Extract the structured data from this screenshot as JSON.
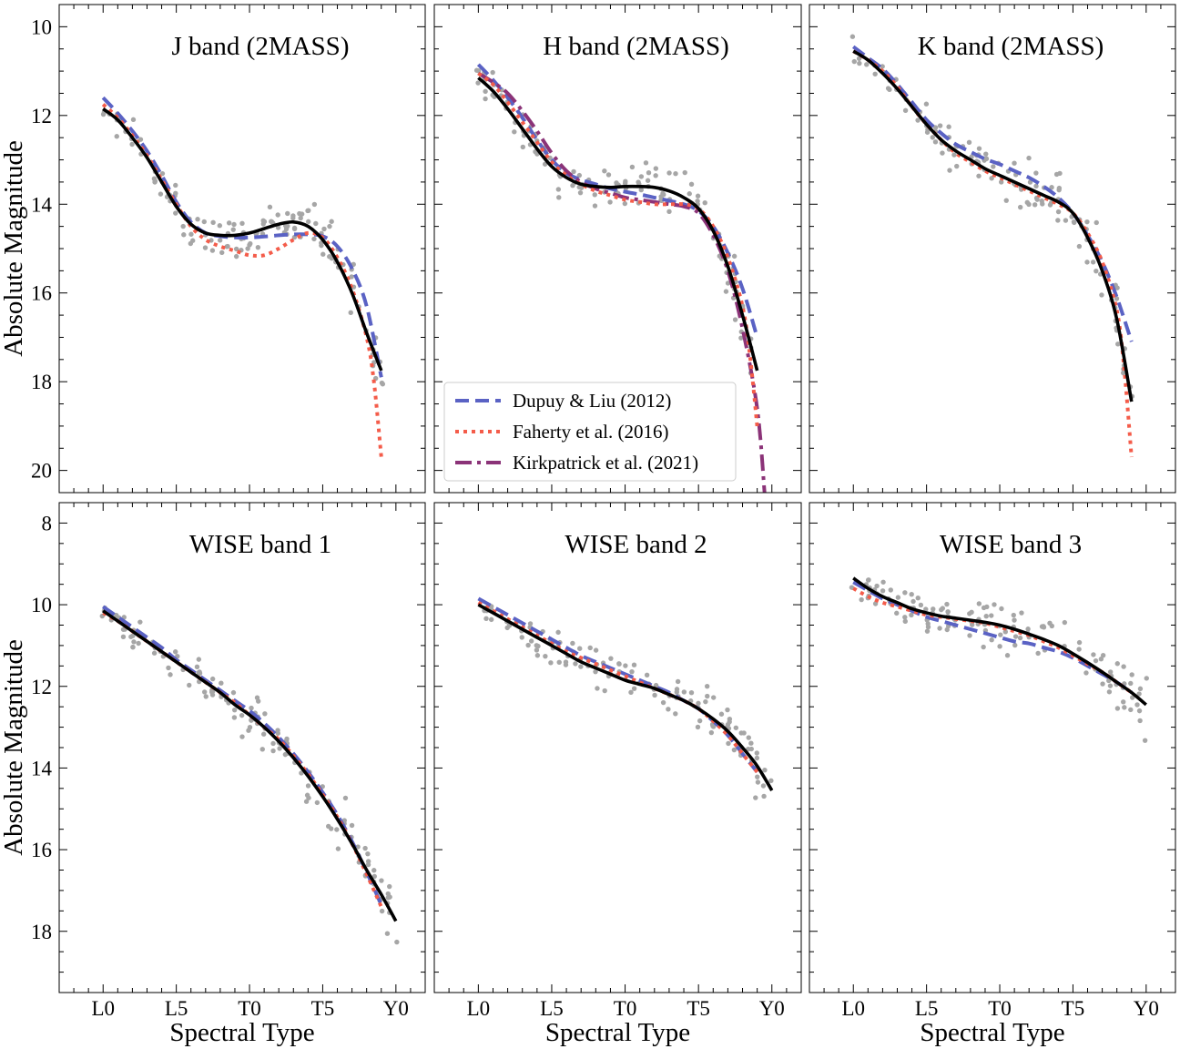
{
  "figure": {
    "ylabel": "Absolute Magnitude",
    "xlabel": "Spectral Type",
    "xticks": [
      {
        "v": 0,
        "label": "L0"
      },
      {
        "v": 5,
        "label": "L5"
      },
      {
        "v": 10,
        "label": "T0"
      },
      {
        "v": 15,
        "label": "T5"
      },
      {
        "v": 20,
        "label": "Y0"
      }
    ],
    "legend": {
      "entries": [
        {
          "key": "dupuy",
          "label": "Dupuy & Liu (2012)"
        },
        {
          "key": "faherty",
          "label": "Faherty et al. (2016)"
        },
        {
          "key": "kirk",
          "label": "Kirkpatrick et al. (2021)"
        }
      ]
    },
    "styles": {
      "dupuy": {
        "color": "#5a62c4",
        "dash": "15,7"
      },
      "faherty": {
        "color": "#f45c4a",
        "dash": "4,5"
      },
      "kirk": {
        "color": "#8b3378",
        "dash": "18,6,4,6"
      },
      "fit": {
        "color": "#000000",
        "dash": ""
      },
      "points": {
        "color": "#a6a6a6"
      }
    }
  },
  "chart_data": [
    {
      "type": "line",
      "title": "J band (2MASS)",
      "xlim": [
        -3,
        22
      ],
      "ylim": [
        20.5,
        9.5
      ],
      "y_inverted": true,
      "yticks": [
        10,
        12,
        14,
        16,
        18,
        20
      ],
      "xlabel": "",
      "ylabel": "Absolute Magnitude",
      "series": [
        {
          "key": "dupuy",
          "x": [
            0,
            1,
            2,
            3,
            4,
            5,
            6,
            7,
            8,
            9,
            10,
            11,
            12,
            13,
            14,
            15,
            16,
            17,
            18,
            19
          ],
          "y": [
            11.6,
            11.95,
            12.35,
            12.8,
            13.35,
            13.95,
            14.4,
            14.65,
            14.72,
            14.75,
            14.75,
            14.73,
            14.7,
            14.68,
            14.68,
            14.72,
            14.95,
            15.45,
            16.3,
            17.9
          ]
        },
        {
          "key": "faherty",
          "x": [
            0,
            1,
            2,
            3,
            4,
            5,
            6,
            7,
            8,
            9,
            10,
            11,
            12,
            13,
            14,
            15,
            16,
            17,
            18,
            18.5,
            19
          ],
          "y": [
            11.75,
            12.05,
            12.45,
            12.9,
            13.45,
            14.0,
            14.5,
            14.8,
            14.95,
            15.05,
            15.15,
            15.15,
            15.0,
            14.8,
            14.65,
            14.75,
            15.2,
            15.9,
            17.0,
            18.0,
            19.7
          ]
        },
        {
          "key": "fit",
          "x": [
            0,
            1,
            2,
            3,
            4,
            5,
            6,
            7,
            8,
            9,
            10,
            11,
            12,
            13,
            14,
            15,
            16,
            17,
            18,
            19
          ],
          "y": [
            11.85,
            12.1,
            12.5,
            12.95,
            13.5,
            14.05,
            14.45,
            14.65,
            14.7,
            14.7,
            14.65,
            14.55,
            14.45,
            14.4,
            14.5,
            14.8,
            15.3,
            16.0,
            16.9,
            17.75
          ]
        }
      ]
    },
    {
      "type": "line",
      "title": "H band (2MASS)",
      "xlim": [
        -3,
        22
      ],
      "ylim": [
        20.5,
        9.5
      ],
      "y_inverted": true,
      "yticks": [
        10,
        12,
        14,
        16,
        18,
        20
      ],
      "xlabel": "",
      "ylabel": "",
      "series": [
        {
          "key": "dupuy",
          "x": [
            0,
            1,
            2,
            3,
            4,
            5,
            6,
            7,
            8,
            9,
            10,
            11,
            12,
            13,
            14,
            15,
            16,
            17,
            18,
            19
          ],
          "y": [
            10.85,
            11.2,
            11.6,
            12.05,
            12.55,
            13.0,
            13.3,
            13.45,
            13.55,
            13.65,
            13.72,
            13.78,
            13.85,
            13.92,
            14.0,
            14.15,
            14.5,
            15.1,
            15.9,
            17.0
          ]
        },
        {
          "key": "faherty",
          "x": [
            0,
            1,
            2,
            3,
            4,
            5,
            6,
            7,
            8,
            9,
            10,
            11,
            12,
            13,
            14,
            15,
            16,
            17,
            18,
            18.5,
            19
          ],
          "y": [
            11.05,
            11.3,
            11.7,
            12.15,
            12.6,
            13.05,
            13.35,
            13.55,
            13.7,
            13.8,
            13.9,
            13.95,
            14.0,
            14.0,
            14.0,
            14.1,
            14.5,
            15.2,
            16.3,
            17.4,
            19.0
          ]
        },
        {
          "key": "kirk",
          "x": [
            0,
            1,
            2,
            3,
            4,
            5,
            6,
            7,
            8,
            9,
            10,
            11,
            12,
            13,
            14,
            15,
            16,
            17,
            18,
            19,
            19.5
          ],
          "y": [
            11.05,
            11.25,
            11.5,
            11.9,
            12.35,
            12.85,
            13.25,
            13.5,
            13.65,
            13.75,
            13.85,
            13.9,
            13.95,
            14.0,
            14.05,
            14.2,
            14.7,
            15.5,
            16.8,
            18.6,
            20.5
          ]
        },
        {
          "key": "fit",
          "x": [
            0,
            1,
            2,
            3,
            4,
            5,
            6,
            7,
            8,
            9,
            10,
            11,
            12,
            13,
            14,
            15,
            16,
            17,
            18,
            19
          ],
          "y": [
            11.15,
            11.45,
            11.85,
            12.3,
            12.75,
            13.15,
            13.4,
            13.55,
            13.6,
            13.62,
            13.6,
            13.6,
            13.62,
            13.7,
            13.85,
            14.1,
            14.6,
            15.4,
            16.5,
            17.75
          ]
        }
      ]
    },
    {
      "type": "line",
      "title": "K band (2MASS)",
      "xlim": [
        -3,
        22
      ],
      "ylim": [
        20.5,
        9.5
      ],
      "y_inverted": true,
      "yticks": [
        10,
        12,
        14,
        16,
        18,
        20
      ],
      "xlabel": "",
      "ylabel": "",
      "series": [
        {
          "key": "dupuy",
          "x": [
            0,
            1,
            2,
            3,
            4,
            5,
            6,
            7,
            8,
            9,
            10,
            11,
            12,
            13,
            14,
            15,
            16,
            17,
            18,
            19
          ],
          "y": [
            10.45,
            10.7,
            10.95,
            11.3,
            11.7,
            12.1,
            12.4,
            12.65,
            12.82,
            12.98,
            13.1,
            13.25,
            13.4,
            13.6,
            13.85,
            14.2,
            14.7,
            15.3,
            16.1,
            17.1
          ]
        },
        {
          "key": "faherty",
          "x": [
            0,
            1,
            2,
            3,
            4,
            5,
            6,
            7,
            8,
            9,
            10,
            11,
            12,
            13,
            14,
            15,
            16,
            17,
            18,
            18.5,
            19
          ],
          "y": [
            10.55,
            10.75,
            11.0,
            11.35,
            11.8,
            12.2,
            12.55,
            12.85,
            13.05,
            13.25,
            13.4,
            13.55,
            13.7,
            13.85,
            14.0,
            14.2,
            14.65,
            15.3,
            16.4,
            17.7,
            19.7
          ]
        },
        {
          "key": "fit",
          "x": [
            0,
            1,
            2,
            3,
            4,
            5,
            6,
            7,
            8,
            9,
            10,
            11,
            12,
            13,
            14,
            15,
            16,
            17,
            18,
            19
          ],
          "y": [
            10.55,
            10.75,
            11.05,
            11.4,
            11.8,
            12.2,
            12.55,
            12.8,
            13.0,
            13.2,
            13.35,
            13.5,
            13.65,
            13.8,
            13.95,
            14.2,
            14.75,
            15.5,
            16.6,
            18.45
          ]
        }
      ]
    },
    {
      "type": "line",
      "title": "WISE band 1",
      "xlim": [
        -3,
        22
      ],
      "ylim": [
        19.5,
        7.5
      ],
      "y_inverted": true,
      "yticks": [
        8,
        10,
        12,
        14,
        16,
        18
      ],
      "xlabel": "Spectral Type",
      "ylabel": "Absolute Magnitude",
      "series": [
        {
          "key": "dupuy",
          "x": [
            0,
            1,
            2,
            3,
            4,
            5,
            6,
            7,
            8,
            9,
            10,
            11,
            12,
            13,
            14,
            15,
            16,
            17,
            18,
            19
          ],
          "y": [
            10.05,
            10.3,
            10.55,
            10.8,
            11.05,
            11.35,
            11.6,
            11.85,
            12.1,
            12.35,
            12.6,
            12.9,
            13.25,
            13.65,
            14.1,
            14.6,
            15.15,
            15.8,
            16.55,
            17.35
          ]
        },
        {
          "key": "faherty",
          "x": [
            0,
            1,
            2,
            3,
            4,
            5,
            6,
            7,
            8,
            9,
            10,
            11,
            12,
            13,
            14,
            15,
            16,
            17,
            18,
            19
          ],
          "y": [
            10.2,
            10.4,
            10.65,
            10.9,
            11.15,
            11.4,
            11.65,
            11.9,
            12.15,
            12.4,
            12.7,
            13.0,
            13.3,
            13.7,
            14.15,
            14.65,
            15.2,
            15.85,
            16.6,
            17.4
          ]
        },
        {
          "key": "fit",
          "x": [
            0,
            1,
            2,
            3,
            4,
            5,
            6,
            7,
            8,
            9,
            10,
            11,
            12,
            13,
            14,
            15,
            16,
            17,
            18,
            19,
            20
          ],
          "y": [
            10.15,
            10.4,
            10.65,
            10.9,
            11.15,
            11.4,
            11.65,
            11.9,
            12.15,
            12.45,
            12.7,
            13.0,
            13.35,
            13.75,
            14.2,
            14.7,
            15.25,
            15.85,
            16.5,
            17.1,
            17.75
          ]
        }
      ]
    },
    {
      "type": "line",
      "title": "WISE band 2",
      "xlim": [
        -3,
        22
      ],
      "ylim": [
        19.5,
        7.5
      ],
      "y_inverted": true,
      "yticks": [
        8,
        10,
        12,
        14,
        16,
        18
      ],
      "xlabel": "Spectral Type",
      "ylabel": "",
      "series": [
        {
          "key": "dupuy",
          "x": [
            0,
            1,
            2,
            3,
            4,
            5,
            6,
            7,
            8,
            9,
            10,
            11,
            12,
            13,
            14,
            15,
            16,
            17,
            18,
            19
          ],
          "y": [
            9.85,
            10.05,
            10.25,
            10.45,
            10.65,
            10.85,
            11.05,
            11.25,
            11.4,
            11.55,
            11.7,
            11.85,
            12.0,
            12.15,
            12.35,
            12.55,
            12.85,
            13.2,
            13.65,
            14.1
          ]
        },
        {
          "key": "faherty",
          "x": [
            0,
            1,
            2,
            3,
            4,
            5,
            6,
            7,
            8,
            9,
            10,
            11,
            12,
            13,
            14,
            15,
            16,
            17,
            18,
            19
          ],
          "y": [
            9.95,
            10.15,
            10.35,
            10.55,
            10.75,
            10.95,
            11.15,
            11.3,
            11.45,
            11.6,
            11.75,
            11.9,
            12.05,
            12.2,
            12.35,
            12.55,
            12.85,
            13.2,
            13.65,
            14.1
          ]
        },
        {
          "key": "fit",
          "x": [
            0,
            1,
            2,
            3,
            4,
            5,
            6,
            7,
            8,
            9,
            10,
            11,
            12,
            13,
            14,
            15,
            16,
            17,
            18,
            19,
            20
          ],
          "y": [
            10.0,
            10.2,
            10.4,
            10.6,
            10.8,
            11.0,
            11.2,
            11.4,
            11.55,
            11.7,
            11.85,
            11.95,
            12.05,
            12.2,
            12.35,
            12.55,
            12.8,
            13.1,
            13.5,
            13.95,
            14.55
          ]
        }
      ]
    },
    {
      "type": "line",
      "title": "WISE band 3",
      "xlim": [
        -3,
        22
      ],
      "ylim": [
        19.5,
        7.5
      ],
      "y_inverted": true,
      "yticks": [
        8,
        10,
        12,
        14,
        16,
        18
      ],
      "xlabel": "Spectral Type",
      "ylabel": "",
      "series": [
        {
          "key": "dupuy",
          "x": [
            0,
            1,
            2,
            3,
            4,
            5,
            6,
            7,
            8,
            9,
            10,
            11,
            12,
            13,
            14,
            15,
            16,
            17,
            18,
            19
          ],
          "y": [
            9.45,
            9.65,
            9.85,
            10.0,
            10.15,
            10.3,
            10.4,
            10.5,
            10.6,
            10.7,
            10.8,
            10.9,
            10.95,
            11.05,
            11.15,
            11.3,
            11.5,
            11.7,
            11.9,
            12.15
          ]
        },
        {
          "key": "faherty",
          "x": [
            0,
            1,
            2,
            3,
            4,
            5,
            6,
            7,
            8,
            9,
            10,
            11,
            12,
            13,
            14,
            15,
            16,
            17,
            18,
            19
          ],
          "y": [
            9.6,
            9.8,
            9.95,
            10.05,
            10.15,
            10.25,
            10.3,
            10.35,
            10.4,
            10.45,
            10.55,
            10.65,
            10.75,
            10.9,
            11.05,
            11.25,
            11.45,
            11.65,
            11.9,
            12.15
          ]
        },
        {
          "key": "fit",
          "x": [
            0,
            1,
            2,
            3,
            4,
            5,
            6,
            7,
            8,
            9,
            10,
            11,
            12,
            13,
            14,
            15,
            16,
            17,
            18,
            19,
            20
          ],
          "y": [
            9.35,
            9.6,
            9.8,
            9.95,
            10.1,
            10.2,
            10.28,
            10.33,
            10.38,
            10.43,
            10.5,
            10.6,
            10.72,
            10.85,
            11.0,
            11.2,
            11.42,
            11.65,
            11.9,
            12.15,
            12.45
          ]
        }
      ]
    }
  ]
}
